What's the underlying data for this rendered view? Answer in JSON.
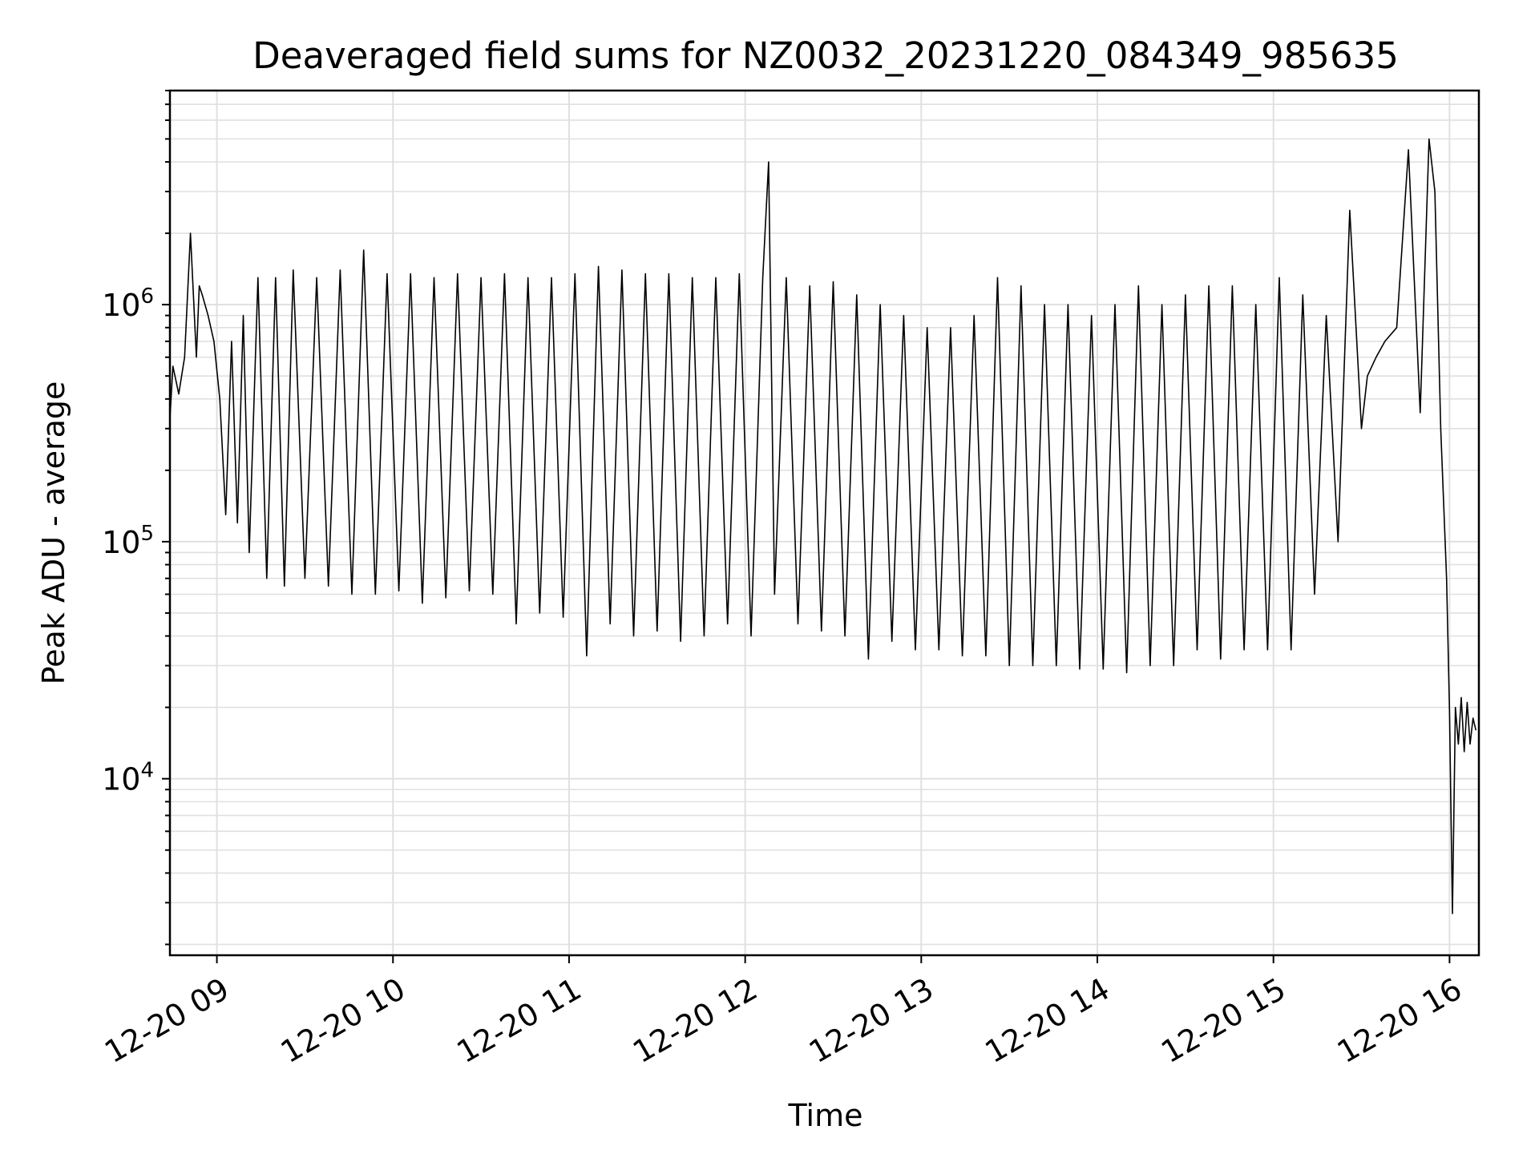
{
  "chart_data": {
    "type": "line",
    "title": "Deaveraged field sums for NZ0032_20231220_084349_985635",
    "xlabel": "Time",
    "ylabel": "Peak ADU - average",
    "x_axis_type": "datetime",
    "xlim": [
      "2023-12-20 08:44",
      "2023-12-20 16:10"
    ],
    "ylim": [
      1800,
      8000000
    ],
    "y_scale": "log",
    "grid": true,
    "line_color": "#000000",
    "x_ticks": [
      {
        "value": "2023-12-20 09:00",
        "label": "12-20 09"
      },
      {
        "value": "2023-12-20 10:00",
        "label": "12-20 10"
      },
      {
        "value": "2023-12-20 11:00",
        "label": "12-20 11"
      },
      {
        "value": "2023-12-20 12:00",
        "label": "12-20 12"
      },
      {
        "value": "2023-12-20 13:00",
        "label": "12-20 13"
      },
      {
        "value": "2023-12-20 14:00",
        "label": "12-20 14"
      },
      {
        "value": "2023-12-20 15:00",
        "label": "12-20 15"
      },
      {
        "value": "2023-12-20 16:00",
        "label": "12-20 16"
      }
    ],
    "y_ticks": [
      {
        "value": 10000,
        "base": "10",
        "exp": "4"
      },
      {
        "value": 100000,
        "base": "10",
        "exp": "5"
      },
      {
        "value": 1000000,
        "base": "10",
        "exp": "6"
      }
    ],
    "series": [
      {
        "x": [
          "2023-12-20 08:44",
          "2023-12-20 08:45",
          "2023-12-20 08:47",
          "2023-12-20 08:49",
          "2023-12-20 08:51",
          "2023-12-20 08:53",
          "2023-12-20 08:54",
          "2023-12-20 08:55",
          "2023-12-20 08:57",
          "2023-12-20 08:59",
          "2023-12-20 09:01",
          "2023-12-20 09:03",
          "2023-12-20 09:05",
          "2023-12-20 09:07",
          "2023-12-20 09:09",
          "2023-12-20 09:11",
          "2023-12-20 09:14",
          "2023-12-20 09:17",
          "2023-12-20 09:20",
          "2023-12-20 09:23",
          "2023-12-20 09:26",
          "2023-12-20 09:30",
          "2023-12-20 09:34",
          "2023-12-20 09:38",
          "2023-12-20 09:42",
          "2023-12-20 09:46",
          "2023-12-20 09:50",
          "2023-12-20 09:54",
          "2023-12-20 09:58",
          "2023-12-20 10:02",
          "2023-12-20 10:06",
          "2023-12-20 10:10",
          "2023-12-20 10:14",
          "2023-12-20 10:18",
          "2023-12-20 10:22",
          "2023-12-20 10:26",
          "2023-12-20 10:30",
          "2023-12-20 10:34",
          "2023-12-20 10:38",
          "2023-12-20 10:42",
          "2023-12-20 10:46",
          "2023-12-20 10:50",
          "2023-12-20 10:54",
          "2023-12-20 10:58",
          "2023-12-20 11:02",
          "2023-12-20 11:06",
          "2023-12-20 11:10",
          "2023-12-20 11:14",
          "2023-12-20 11:18",
          "2023-12-20 11:22",
          "2023-12-20 11:26",
          "2023-12-20 11:30",
          "2023-12-20 11:34",
          "2023-12-20 11:38",
          "2023-12-20 11:42",
          "2023-12-20 11:46",
          "2023-12-20 11:50",
          "2023-12-20 11:54",
          "2023-12-20 11:58",
          "2023-12-20 12:02",
          "2023-12-20 12:06",
          "2023-12-20 12:08",
          "2023-12-20 12:10",
          "2023-12-20 12:14",
          "2023-12-20 12:18",
          "2023-12-20 12:22",
          "2023-12-20 12:26",
          "2023-12-20 12:30",
          "2023-12-20 12:34",
          "2023-12-20 12:38",
          "2023-12-20 12:42",
          "2023-12-20 12:46",
          "2023-12-20 12:50",
          "2023-12-20 12:54",
          "2023-12-20 12:58",
          "2023-12-20 13:02",
          "2023-12-20 13:06",
          "2023-12-20 13:10",
          "2023-12-20 13:14",
          "2023-12-20 13:18",
          "2023-12-20 13:22",
          "2023-12-20 13:26",
          "2023-12-20 13:30",
          "2023-12-20 13:34",
          "2023-12-20 13:38",
          "2023-12-20 13:42",
          "2023-12-20 13:46",
          "2023-12-20 13:50",
          "2023-12-20 13:54",
          "2023-12-20 13:58",
          "2023-12-20 14:02",
          "2023-12-20 14:06",
          "2023-12-20 14:10",
          "2023-12-20 14:14",
          "2023-12-20 14:18",
          "2023-12-20 14:22",
          "2023-12-20 14:26",
          "2023-12-20 14:30",
          "2023-12-20 14:34",
          "2023-12-20 14:38",
          "2023-12-20 14:42",
          "2023-12-20 14:46",
          "2023-12-20 14:50",
          "2023-12-20 14:54",
          "2023-12-20 14:58",
          "2023-12-20 15:02",
          "2023-12-20 15:06",
          "2023-12-20 15:10",
          "2023-12-20 15:14",
          "2023-12-20 15:18",
          "2023-12-20 15:22",
          "2023-12-20 15:26",
          "2023-12-20 15:30",
          "2023-12-20 15:32",
          "2023-12-20 15:35",
          "2023-12-20 15:38",
          "2023-12-20 15:42",
          "2023-12-20 15:46",
          "2023-12-20 15:50",
          "2023-12-20 15:53",
          "2023-12-20 15:55",
          "2023-12-20 15:57",
          "2023-12-20 15:59",
          "2023-12-20 16:00",
          "2023-12-20 16:01",
          "2023-12-20 16:02",
          "2023-12-20 16:03",
          "2023-12-20 16:04",
          "2023-12-20 16:05",
          "2023-12-20 16:06",
          "2023-12-20 16:07",
          "2023-12-20 16:08",
          "2023-12-20 16:09"
        ],
        "y": [
          330000,
          550000,
          420000,
          600000,
          2000000,
          600000,
          1200000,
          1100000,
          900000,
          700000,
          400000,
          130000,
          700000,
          120000,
          900000,
          90000,
          1300000,
          70000,
          1300000,
          65000,
          1400000,
          70000,
          1300000,
          65000,
          1400000,
          60000,
          1700000,
          60000,
          1350000,
          62000,
          1350000,
          55000,
          1300000,
          58000,
          1350000,
          62000,
          1300000,
          60000,
          1350000,
          45000,
          1300000,
          50000,
          1300000,
          48000,
          1350000,
          33000,
          1450000,
          45000,
          1400000,
          40000,
          1350000,
          42000,
          1350000,
          38000,
          1300000,
          40000,
          1300000,
          45000,
          1350000,
          40000,
          1300000,
          4000000,
          60000,
          1300000,
          45000,
          1200000,
          42000,
          1250000,
          40000,
          1100000,
          32000,
          1000000,
          38000,
          900000,
          35000,
          800000,
          35000,
          800000,
          33000,
          900000,
          33000,
          1300000,
          30000,
          1200000,
          30000,
          1000000,
          30000,
          1000000,
          29000,
          900000,
          29000,
          1000000,
          28000,
          1200000,
          30000,
          1000000,
          30000,
          1100000,
          35000,
          1200000,
          32000,
          1200000,
          35000,
          1000000,
          35000,
          1300000,
          35000,
          1100000,
          60000,
          900000,
          100000,
          2500000,
          300000,
          500000,
          600000,
          700000,
          800000,
          4500000,
          350000,
          5000000,
          3000000,
          300000,
          70000,
          19000,
          2700,
          20000,
          14000,
          22000,
          13000,
          21000,
          14000,
          18000,
          16000
        ]
      }
    ]
  }
}
